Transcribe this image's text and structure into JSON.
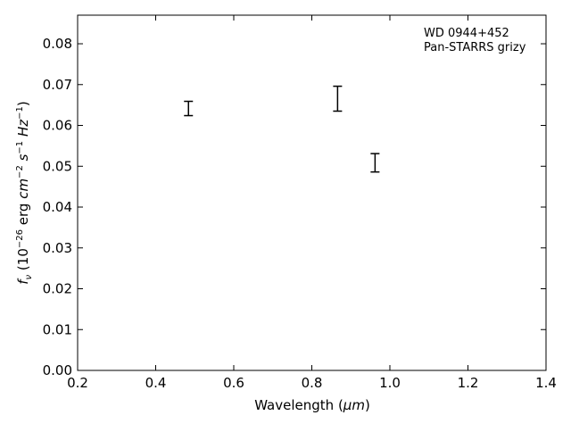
{
  "chart_data": {
    "type": "errorbar",
    "title": "",
    "xlabel": "Wavelength",
    "xlabel_unit": "μm",
    "ylabel": "f",
    "ylabel_sub": "ν",
    "ylabel_prefix": "(10",
    "ylabel_exp1": "−26",
    "ylabel_mid1": " erg ",
    "ylabel_cm": "cm",
    "ylabel_exp2": "−2",
    "ylabel_s": "s",
    "ylabel_exp3": "−1",
    "ylabel_hz": "Hz",
    "ylabel_exp4": "−1",
    "ylabel_close": ")",
    "xlim": [
      0.2,
      1.4
    ],
    "ylim": [
      0.0,
      0.087
    ],
    "xticks": [
      0.2,
      0.4,
      0.6,
      0.8,
      1.0,
      1.2,
      1.4
    ],
    "xtick_labels": [
      "0.2",
      "0.4",
      "0.6",
      "0.8",
      "1.0",
      "1.2",
      "1.4"
    ],
    "yticks": [
      0.0,
      0.01,
      0.02,
      0.03,
      0.04,
      0.05,
      0.06,
      0.07,
      0.08
    ],
    "ytick_labels": [
      "0.00",
      "0.01",
      "0.02",
      "0.03",
      "0.04",
      "0.05",
      "0.06",
      "0.07",
      "0.08"
    ],
    "grid": false,
    "annotation_lines": [
      "WD 0944+452",
      "Pan-STARRS grizy"
    ],
    "annotation_placement": "top-right",
    "series": [
      {
        "x": [
          0.484,
          0.866,
          0.962
        ],
        "y": [
          0.0641,
          0.0666,
          0.0509
        ],
        "y_low": [
          0.0624,
          0.0635,
          0.0486
        ],
        "y_high": [
          0.0659,
          0.0696,
          0.0531
        ],
        "color": "#000000"
      }
    ]
  }
}
